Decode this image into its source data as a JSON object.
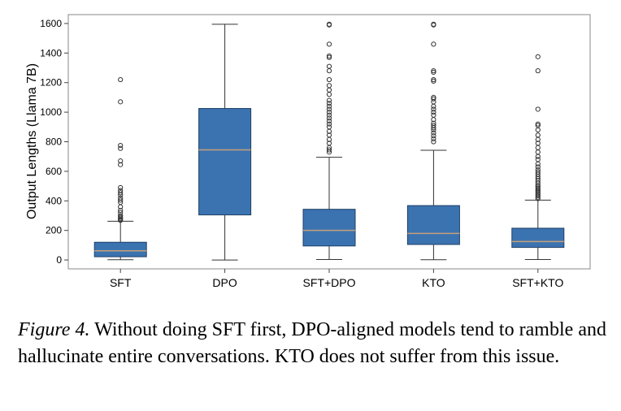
{
  "chart_data": {
    "type": "box",
    "ylabel": "Output Lengths (Llama 7B)",
    "ylim": [
      -60,
      1660
    ],
    "yticks": [
      0,
      200,
      400,
      600,
      800,
      1000,
      1200,
      1400,
      1600
    ],
    "categories": [
      "SFT",
      "DPO",
      "SFT+DPO",
      "KTO",
      "SFT+KTO"
    ],
    "box_color": "#3b73b0",
    "median_color": "#c7a07a",
    "boxes": [
      {
        "name": "SFT",
        "whisker_low": 2,
        "q1": 22,
        "median": 62,
        "q3": 120,
        "whisker_high": 262,
        "outliers": [
          268,
          274,
          282,
          290,
          300,
          320,
          335,
          360,
          390,
          405,
          420,
          440,
          455,
          470,
          490,
          645,
          670,
          755,
          775,
          1070,
          1220
        ]
      },
      {
        "name": "DPO",
        "whisker_low": 0,
        "q1": 305,
        "median": 745,
        "q3": 1025,
        "whisker_high": 1595,
        "outliers": []
      },
      {
        "name": "SFT+DPO",
        "whisker_low": 3,
        "q1": 95,
        "median": 200,
        "q3": 343,
        "whisker_high": 695,
        "outliers": [
          730,
          745,
          760,
          790,
          815,
          845,
          870,
          900,
          920,
          940,
          960,
          980,
          1000,
          1020,
          1040,
          1060,
          1080,
          1120,
          1150,
          1180,
          1220,
          1280,
          1310,
          1370,
          1380,
          1460,
          1590,
          1595
        ]
      },
      {
        "name": "KTO",
        "whisker_low": 2,
        "q1": 105,
        "median": 180,
        "q3": 368,
        "whisker_high": 742,
        "outliers": [
          800,
          820,
          840,
          860,
          880,
          895,
          910,
          925,
          950,
          980,
          1000,
          1020,
          1040,
          1070,
          1090,
          1100,
          1210,
          1220,
          1270,
          1280,
          1460,
          1590,
          1595
        ]
      },
      {
        "name": "SFT+KTO",
        "whisker_low": 3,
        "q1": 85,
        "median": 125,
        "q3": 215,
        "whisker_high": 405,
        "outliers": [
          415,
          425,
          435,
          445,
          455,
          465,
          475,
          485,
          495,
          505,
          520,
          535,
          550,
          565,
          580,
          595,
          610,
          630,
          650,
          680,
          700,
          730,
          760,
          790,
          815,
          845,
          880,
          910,
          920,
          1020,
          1280,
          1375
        ]
      }
    ]
  },
  "caption": {
    "figure_label": "Figure 4.",
    "text": " Without doing SFT first, DPO-aligned models tend to ramble and hallucinate entire conversations. KTO does not suffer from this issue."
  }
}
